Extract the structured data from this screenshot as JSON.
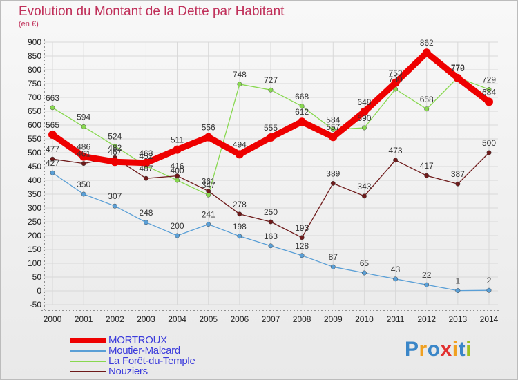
{
  "header": {
    "title": "Evolution du Montant de la Dette par Habitant",
    "subtitle": "(en €)"
  },
  "logo": {
    "text": "Proxiti",
    "colors": [
      "#3a86c8",
      "#f0a020",
      "#3a86c8",
      "#e23030",
      "#f0a020",
      "#3a86c8",
      "#a0c020"
    ]
  },
  "chart_data": {
    "type": "line",
    "title": "Evolution du Montant de la Dette par Habitant",
    "subtitle": "(en €)",
    "x": [
      "2000",
      "2001",
      "2002",
      "2003",
      "2004",
      "2005",
      "2006",
      "2007",
      "2008",
      "2009",
      "2010",
      "2011",
      "2012",
      "2013",
      "2014"
    ],
    "ylim": [
      -50,
      900
    ],
    "yticks": [
      -50,
      0,
      50,
      100,
      150,
      200,
      250,
      300,
      350,
      400,
      450,
      500,
      550,
      600,
      650,
      700,
      750,
      800,
      850,
      900
    ],
    "grid": true,
    "legend_position": "bottom-left",
    "series": [
      {
        "name": "MORTROUX",
        "color": "#ee0000",
        "values": [
          565,
          486,
          467,
          463,
          511,
          556,
          494,
          555,
          612,
          557,
          648,
          753,
          862,
          770,
          684
        ]
      },
      {
        "name": "Moutier-Malcard",
        "color": "#5a9fd6",
        "values": [
          427,
          350,
          307,
          248,
          200,
          241,
          198,
          163,
          128,
          87,
          65,
          43,
          22,
          1,
          2
        ]
      },
      {
        "name": "La Forêt-du-Temple",
        "color": "#88d850",
        "values": [
          663,
          594,
          524,
          452,
          400,
          347,
          748,
          727,
          668,
          584,
          590,
          730,
          658,
          772,
          729
        ]
      },
      {
        "name": "Nouziers",
        "color": "#6e1a1a",
        "values": [
          477,
          461,
          482,
          407,
          416,
          361,
          278,
          250,
          193,
          389,
          343,
          473,
          417,
          387,
          500
        ]
      }
    ]
  }
}
